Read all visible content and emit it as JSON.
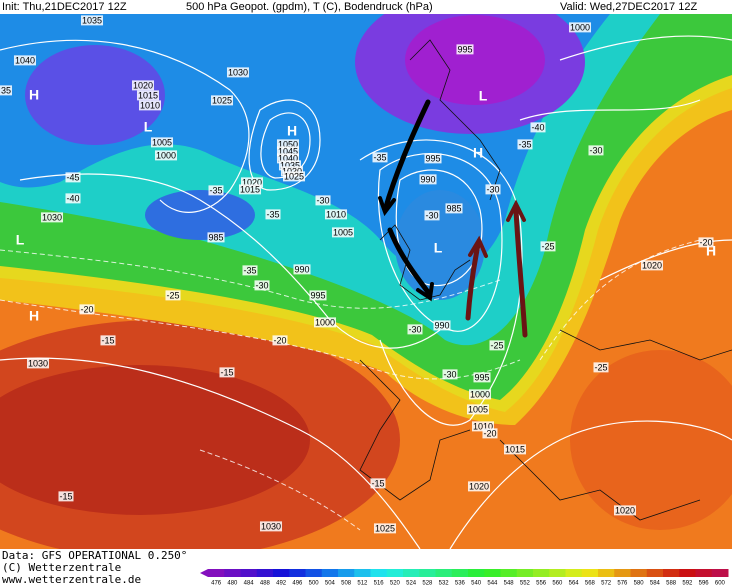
{
  "header": {
    "init": "Init: Thu,21DEC2017 12Z",
    "product": "500 hPa Geopot. (gpdm), T (C), Bodendruck (hPa)",
    "valid": "Valid: Wed,27DEC2017 12Z"
  },
  "footer": {
    "data": "Data: GFS OPERATIONAL 0.250°",
    "copyright": "(C) Wetterzentrale",
    "url": "www.wetterzentrale.de"
  },
  "colorbar": {
    "labels": [
      476,
      480,
      484,
      488,
      492,
      496,
      500,
      504,
      508,
      512,
      516,
      520,
      524,
      528,
      532,
      536,
      540,
      544,
      548,
      552,
      556,
      560,
      564,
      568,
      572,
      576,
      580,
      584,
      588,
      592,
      596,
      600
    ]
  },
  "pressure_labels": [
    "1035",
    "1040",
    "35",
    "1020",
    "1015",
    "1010",
    "1025",
    "1030",
    "1005",
    "1000",
    "1050",
    "1045",
    "1040",
    "1035",
    "1030",
    "1025",
    "1020",
    "1015",
    "985",
    "990",
    "995",
    "1000",
    "1005",
    "1010",
    "1030",
    "1030",
    "1030",
    "1025",
    "1020",
    "1020",
    "1015",
    "1010",
    "1005",
    "1000",
    "995",
    "990",
    "985",
    "990",
    "995",
    "995",
    "1000",
    "1020"
  ],
  "temperature_labels": [
    "-40",
    "-45",
    "-35",
    "-30",
    "-35",
    "-30",
    "-35",
    "-25",
    "-20",
    "-15",
    "-20",
    "-15",
    "-30",
    "-30",
    "-25",
    "-25",
    "-30",
    "-35",
    "-40",
    "-30",
    "-35",
    "-30",
    "-20",
    "-25",
    "-15",
    "-15",
    "-20"
  ],
  "centers": [
    "H",
    "L",
    "H",
    "L",
    "H",
    "L",
    "L",
    "H",
    "H"
  ]
}
